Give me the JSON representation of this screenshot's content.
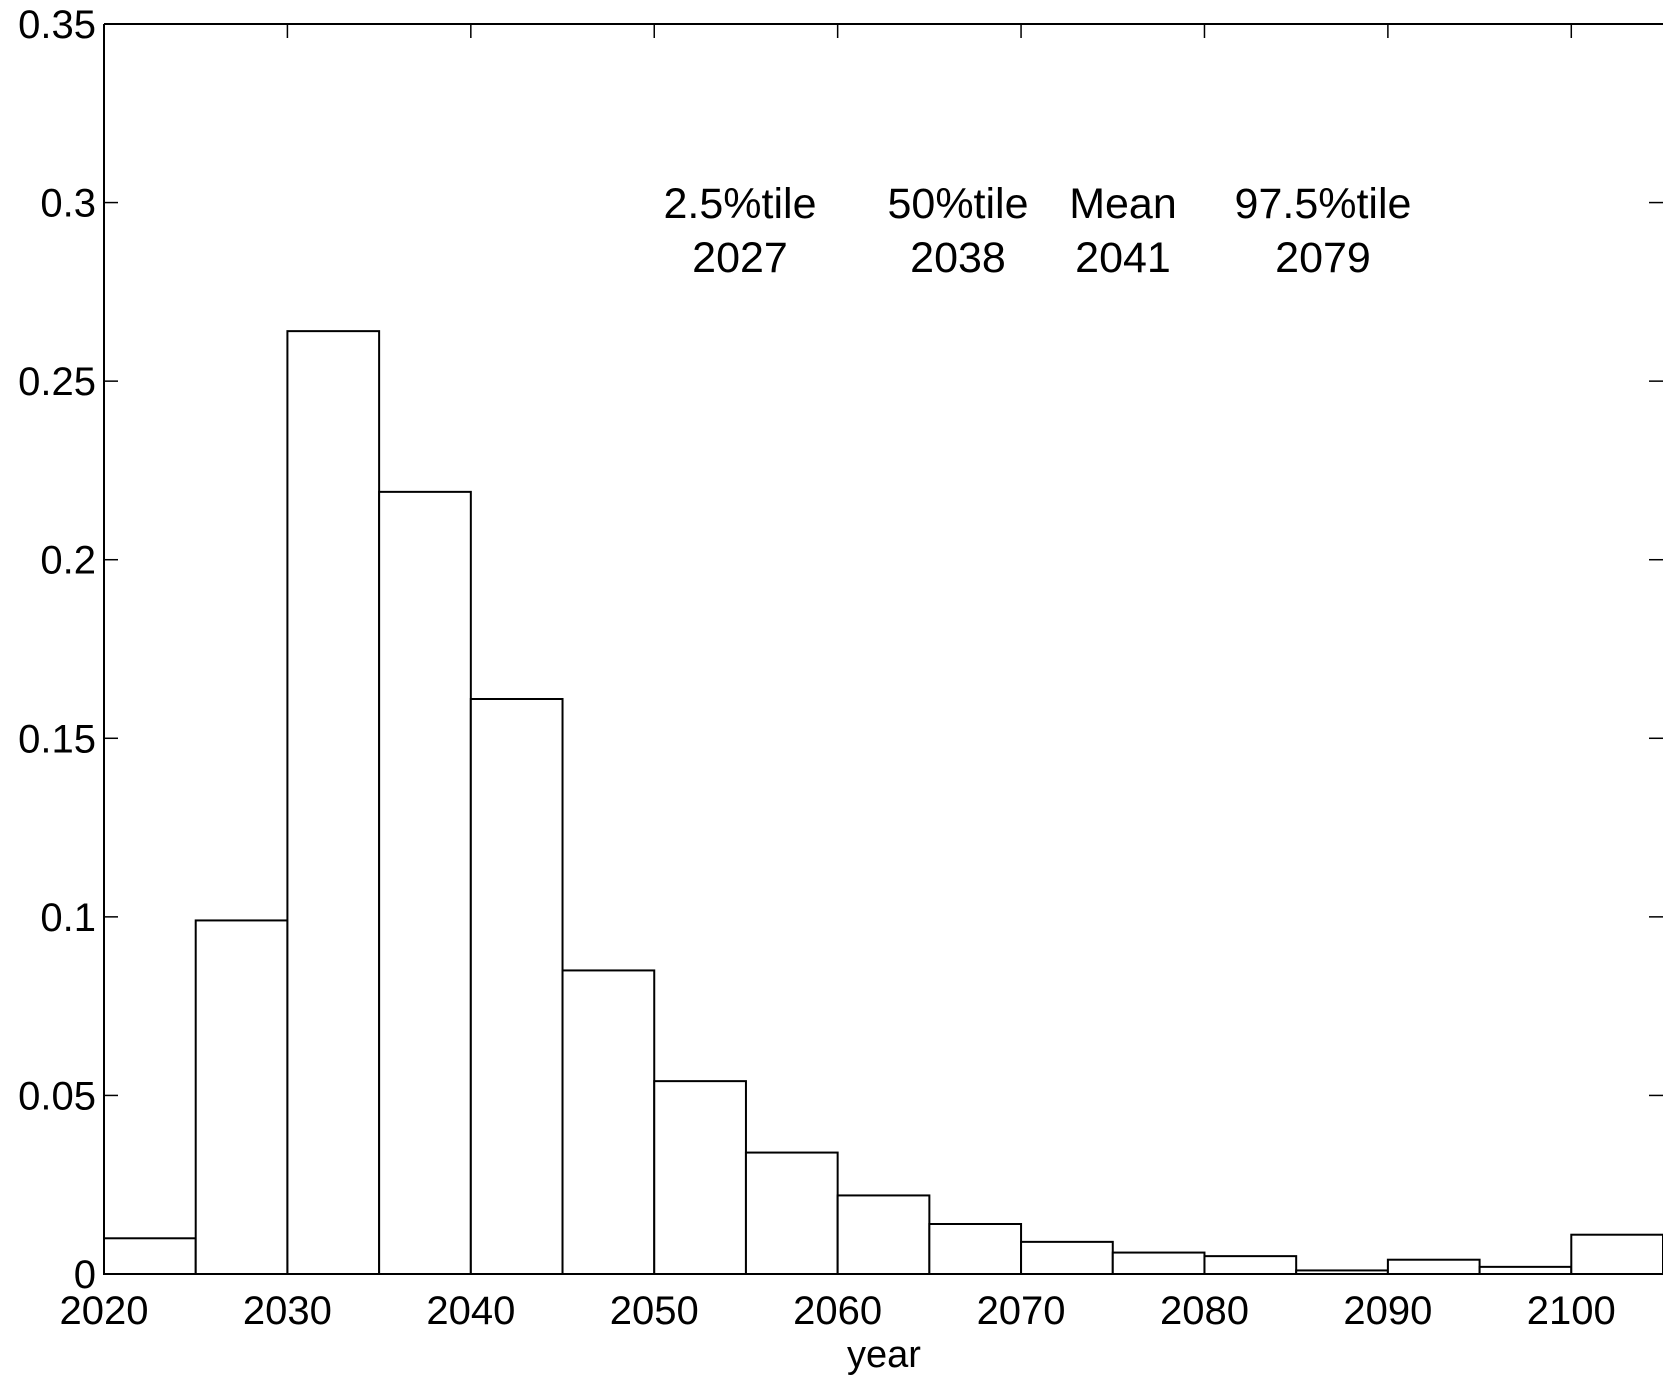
{
  "chart_data": {
    "type": "bar",
    "bin_edges": [
      2020,
      2025,
      2030,
      2035,
      2040,
      2045,
      2050,
      2055,
      2060,
      2065,
      2070,
      2075,
      2080,
      2085,
      2090,
      2095,
      2100,
      2105
    ],
    "values": [
      0.01,
      0.099,
      0.264,
      0.219,
      0.161,
      0.085,
      0.054,
      0.034,
      0.022,
      0.014,
      0.009,
      0.006,
      0.005,
      0.001,
      0.004,
      0.002,
      0.011
    ],
    "xlabel": "year",
    "ylabel": "",
    "title": "",
    "xlim": [
      2020,
      2105
    ],
    "ylim": [
      0,
      0.35
    ],
    "x_ticks": [
      2020,
      2030,
      2040,
      2050,
      2060,
      2070,
      2080,
      2090,
      2100
    ],
    "x_tick_labels": [
      "2020",
      "2030",
      "2040",
      "2050",
      "2060",
      "2070",
      "2080",
      "2090",
      "2100"
    ],
    "y_ticks": [
      0,
      0.05,
      0.1,
      0.15,
      0.2,
      0.25,
      0.3,
      0.35
    ],
    "y_tick_labels": [
      "0",
      "0.05",
      "0.1",
      "0.15",
      "0.2",
      "0.25",
      "0.3",
      "0.35"
    ],
    "grid": false,
    "bar_fill": "#ffffff",
    "bar_stroke": "#000000",
    "annotations": [
      {
        "label": "2.5%tile",
        "value": "2027"
      },
      {
        "label": "50%tile",
        "value": "2038"
      },
      {
        "label": "Mean",
        "value": "2041"
      },
      {
        "label": "97.5%tile",
        "value": "2079"
      }
    ]
  }
}
